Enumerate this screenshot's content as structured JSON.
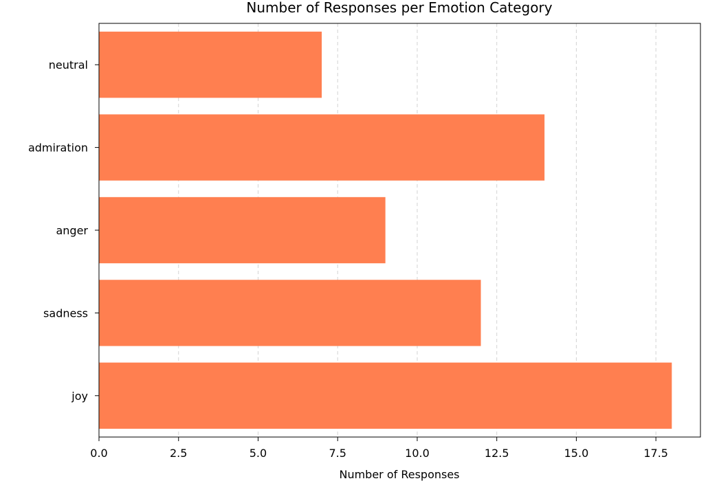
{
  "chart_data": {
    "type": "bar",
    "orientation": "horizontal",
    "title": "Number of Responses per Emotion Category",
    "xlabel": "Number of Responses",
    "ylabel": "",
    "categories": [
      "joy",
      "sadness",
      "anger",
      "admiration",
      "neutral"
    ],
    "values": [
      18,
      12,
      9,
      14,
      7
    ],
    "xlim": [
      0,
      18.9
    ],
    "xticks": [
      0.0,
      2.5,
      5.0,
      7.5,
      10.0,
      12.5,
      15.0,
      17.5
    ],
    "xtick_labels": [
      "0.0",
      "2.5",
      "5.0",
      "7.5",
      "10.0",
      "12.5",
      "15.0",
      "17.5"
    ],
    "grid": {
      "x": true,
      "y": false,
      "style": "dashed"
    },
    "bar_color": "#ff7f50",
    "legend": "none"
  }
}
